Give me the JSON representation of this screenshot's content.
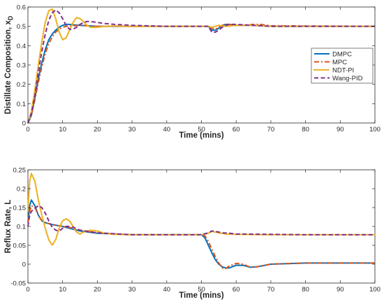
{
  "chart_data": [
    {
      "type": "line",
      "xlabel": "Time (mins)",
      "ylabel": "Distillate Composition, x",
      "ylabel_subscript": "D",
      "xlim": [
        0,
        100
      ],
      "ylim": [
        0,
        0.6
      ],
      "xticks": [
        0,
        10,
        20,
        30,
        40,
        50,
        60,
        70,
        80,
        90,
        100
      ],
      "xtick_labels": [
        "0",
        "10",
        "20",
        "30",
        "40",
        "50",
        "60",
        "70",
        "80",
        "90",
        "100"
      ],
      "yticks": [
        0,
        0.1,
        0.2,
        0.3,
        0.4,
        0.5,
        0.6
      ],
      "ytick_labels": [
        "0",
        "0.1",
        "0.2",
        "0.3",
        "0.4",
        "0.5",
        "0.6"
      ],
      "grid": false,
      "legend": "right",
      "series": [
        {
          "name": "DMPC",
          "color": "#0072bd",
          "style": "solid",
          "x": [
            0,
            1,
            2,
            3,
            4,
            5,
            6,
            7,
            8,
            9,
            10,
            11,
            12,
            13,
            15,
            20,
            30,
            40,
            50,
            52,
            53,
            54,
            55,
            56,
            57,
            58,
            60,
            62,
            65,
            70,
            100
          ],
          "y": [
            0,
            0.04,
            0.13,
            0.23,
            0.31,
            0.38,
            0.43,
            0.46,
            0.48,
            0.495,
            0.505,
            0.51,
            0.51,
            0.508,
            0.505,
            0.5,
            0.5,
            0.5,
            0.5,
            0.5,
            0.48,
            0.48,
            0.49,
            0.505,
            0.51,
            0.51,
            0.505,
            0.505,
            0.505,
            0.5,
            0.5
          ]
        },
        {
          "name": "MPC",
          "color": "#d95319",
          "style": "dashdot",
          "x": [
            0,
            1,
            2,
            3,
            4,
            5,
            6,
            7,
            8,
            9,
            10,
            11,
            12,
            13,
            15,
            20,
            30,
            40,
            50,
            52,
            53,
            54,
            55,
            56,
            57,
            58,
            60,
            62,
            65,
            67,
            70,
            100
          ],
          "y": [
            0,
            0.04,
            0.12,
            0.21,
            0.29,
            0.36,
            0.41,
            0.445,
            0.47,
            0.485,
            0.495,
            0.5,
            0.502,
            0.503,
            0.505,
            0.5,
            0.5,
            0.5,
            0.5,
            0.5,
            0.49,
            0.485,
            0.495,
            0.505,
            0.51,
            0.51,
            0.505,
            0.505,
            0.51,
            0.51,
            0.503,
            0.5
          ]
        },
        {
          "name": "NDT-PI",
          "color": "#edb120",
          "style": "dotted",
          "x": [
            0,
            1,
            2,
            3,
            4,
            5,
            6,
            7,
            8,
            9,
            10,
            11,
            12,
            13,
            14,
            15,
            16,
            17,
            18,
            20,
            22,
            25,
            30,
            40,
            50,
            52,
            53,
            55,
            57,
            60,
            65,
            70,
            100
          ],
          "y": [
            0,
            0.06,
            0.17,
            0.3,
            0.42,
            0.52,
            0.58,
            0.59,
            0.54,
            0.47,
            0.43,
            0.44,
            0.48,
            0.52,
            0.545,
            0.54,
            0.525,
            0.505,
            0.495,
            0.495,
            0.5,
            0.502,
            0.5,
            0.5,
            0.5,
            0.5,
            0.495,
            0.505,
            0.5,
            0.505,
            0.505,
            0.5,
            0.5
          ]
        },
        {
          "name": "Wang-PID",
          "color": "#7e2f8e",
          "style": "dashed",
          "x": [
            0,
            1,
            2,
            3,
            4,
            5,
            6,
            7,
            8,
            9,
            10,
            11,
            12,
            13,
            14,
            15,
            16,
            17,
            18,
            20,
            22,
            25,
            30,
            40,
            50,
            52,
            53,
            54,
            55,
            56,
            57,
            58,
            60,
            65,
            70,
            100
          ],
          "y": [
            0,
            0.05,
            0.14,
            0.26,
            0.37,
            0.46,
            0.53,
            0.57,
            0.585,
            0.57,
            0.54,
            0.505,
            0.485,
            0.485,
            0.495,
            0.51,
            0.52,
            0.525,
            0.525,
            0.52,
            0.515,
            0.51,
            0.505,
            0.5,
            0.5,
            0.5,
            0.47,
            0.47,
            0.48,
            0.495,
            0.505,
            0.51,
            0.51,
            0.505,
            0.5,
            0.5
          ]
        }
      ]
    },
    {
      "type": "line",
      "xlabel": "Time (mins)",
      "ylabel": "Reflux Rate, L",
      "xlim": [
        0,
        100
      ],
      "ylim": [
        -0.05,
        0.25
      ],
      "xticks": [
        0,
        10,
        20,
        30,
        40,
        50,
        60,
        70,
        80,
        90,
        100
      ],
      "xtick_labels": [
        "0",
        "10",
        "20",
        "30",
        "40",
        "50",
        "60",
        "70",
        "80",
        "90",
        "100"
      ],
      "yticks": [
        -0.05,
        0,
        0.05,
        0.1,
        0.15,
        0.2,
        0.25
      ],
      "ytick_labels": [
        "-0.05",
        "0",
        "0.05",
        "0.1",
        "0.15",
        "0.2",
        "0.25"
      ],
      "grid": false,
      "series": [
        {
          "name": "DMPC",
          "color": "#0072bd",
          "style": "solid",
          "x": [
            0,
            0.5,
            1,
            2,
            3,
            4,
            5,
            7,
            10,
            12,
            15,
            20,
            30,
            40,
            50,
            51,
            52,
            53,
            54,
            55,
            56,
            57,
            58,
            60,
            62,
            64,
            66,
            70,
            80,
            90,
            100
          ],
          "y": [
            0.11,
            0.155,
            0.17,
            0.155,
            0.13,
            0.115,
            0.11,
            0.105,
            0.1,
            0.095,
            0.088,
            0.082,
            0.078,
            0.078,
            0.078,
            0.07,
            0.05,
            0.03,
            0.012,
            0.0,
            -0.007,
            -0.01,
            -0.01,
            -0.003,
            -0.003,
            -0.008,
            -0.007,
            0.0,
            0.003,
            0.003,
            0.003
          ]
        },
        {
          "name": "MPC",
          "color": "#d95319",
          "style": "dashdot",
          "x": [
            0,
            0.5,
            1,
            2,
            3,
            4,
            5,
            7,
            10,
            12,
            15,
            20,
            30,
            40,
            50,
            51,
            52,
            53,
            54,
            55,
            56,
            57,
            58,
            60,
            62,
            64,
            66,
            70,
            80,
            90,
            100
          ],
          "y": [
            0.11,
            0.14,
            0.155,
            0.15,
            0.13,
            0.115,
            0.11,
            0.105,
            0.1,
            0.097,
            0.09,
            0.083,
            0.078,
            0.078,
            0.078,
            0.075,
            0.06,
            0.04,
            0.02,
            0.003,
            -0.01,
            -0.012,
            -0.005,
            0.002,
            0.0,
            -0.008,
            -0.007,
            0.0,
            0.003,
            0.003,
            0.003
          ]
        },
        {
          "name": "NDT-PI",
          "color": "#edb120",
          "style": "dotted",
          "x": [
            0,
            0.5,
            1,
            2,
            3,
            4,
            5,
            6,
            7,
            8,
            9,
            10,
            11,
            12,
            13,
            14,
            15,
            16,
            18,
            20,
            22,
            25,
            30,
            40,
            50,
            52,
            53,
            55,
            57,
            60,
            70,
            80,
            90,
            100
          ],
          "y": [
            0.14,
            0.22,
            0.24,
            0.22,
            0.17,
            0.13,
            0.095,
            0.065,
            0.05,
            0.065,
            0.095,
            0.115,
            0.12,
            0.115,
            0.1,
            0.085,
            0.08,
            0.085,
            0.09,
            0.088,
            0.082,
            0.079,
            0.078,
            0.078,
            0.078,
            0.082,
            0.087,
            0.083,
            0.08,
            0.079,
            0.078,
            0.078,
            0.078,
            0.078
          ]
        },
        {
          "name": "Wang-PID",
          "color": "#7e2f8e",
          "style": "dashed",
          "x": [
            0,
            0.5,
            1,
            2,
            3,
            4,
            5,
            6,
            7,
            8,
            9,
            10,
            11,
            12,
            13,
            15,
            20,
            30,
            40,
            50,
            52,
            53,
            54,
            55,
            56,
            58,
            60,
            70,
            80,
            90,
            100
          ],
          "y": [
            0.1,
            0.13,
            0.14,
            0.148,
            0.155,
            0.15,
            0.135,
            0.115,
            0.098,
            0.09,
            0.088,
            0.095,
            0.1,
            0.1,
            0.098,
            0.09,
            0.083,
            0.078,
            0.078,
            0.078,
            0.083,
            0.088,
            0.087,
            0.085,
            0.083,
            0.082,
            0.08,
            0.079,
            0.078,
            0.078,
            0.078
          ]
        }
      ]
    }
  ]
}
